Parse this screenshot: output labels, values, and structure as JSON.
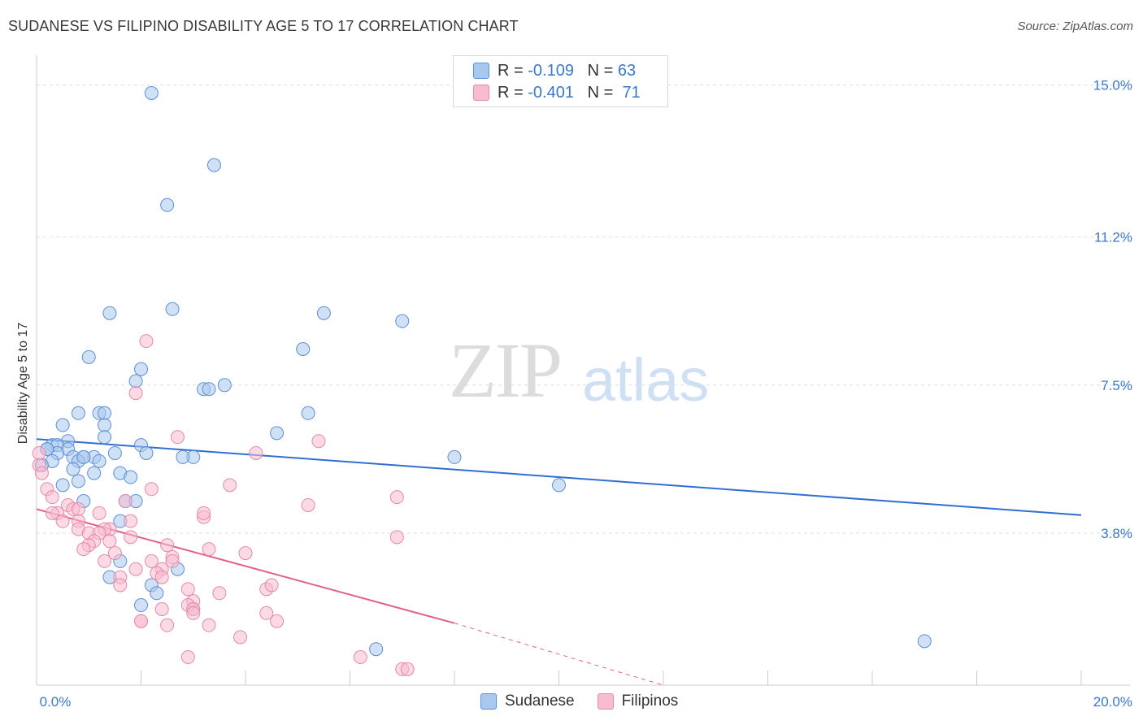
{
  "header": {
    "title": "SUDANESE VS FILIPINO DISABILITY AGE 5 TO 17 CORRELATION CHART",
    "source": "Source: ZipAtlas.com"
  },
  "watermark": {
    "zip": "ZIP",
    "atlas": "atlas"
  },
  "legend": {
    "r_label": "R =",
    "n_label": "N =",
    "rows": [
      {
        "r": "-0.109",
        "n": "63",
        "fill": "#a9c8ef",
        "stroke": "#5b8fd6"
      },
      {
        "r": "-0.401",
        "n": "71",
        "fill": "#f7bcd0",
        "stroke": "#e589a8"
      }
    ]
  },
  "bottom_legend": [
    "Sudanese",
    "Filipinos"
  ],
  "chart_data": {
    "type": "scatter",
    "title": "SUDANESE VS FILIPINO DISABILITY AGE 5 TO 17 CORRELATION CHART",
    "ylabel": "Disability Age 5 to 17",
    "xlabel": "",
    "xlim": [
      0,
      20
    ],
    "ylim": [
      0,
      15.5
    ],
    "x_tick_labels": [
      "0.0%",
      "20.0%"
    ],
    "y_ticks": [
      3.8,
      7.5,
      11.2,
      15.0
    ],
    "y_tick_labels": [
      "3.8%",
      "7.5%",
      "11.2%",
      "15.0%"
    ],
    "grid": true,
    "legend_position": "top-center",
    "colors": {
      "sudanese": "#5b8fd6",
      "filipinos": "#e589a8",
      "sudanese_line": "#2f6fd1",
      "filipinos_line": "#e0608c"
    },
    "series": [
      {
        "name": "Sudanese",
        "trend": {
          "x": [
            0,
            20
          ],
          "y": [
            6.15,
            4.25
          ]
        },
        "points": [
          [
            2.2,
            14.8
          ],
          [
            3.4,
            13.0
          ],
          [
            2.5,
            12.0
          ],
          [
            2.6,
            9.4
          ],
          [
            1.4,
            9.3
          ],
          [
            5.5,
            9.3
          ],
          [
            7.0,
            9.1
          ],
          [
            5.1,
            8.4
          ],
          [
            1.0,
            8.2
          ],
          [
            2.0,
            7.9
          ],
          [
            1.9,
            7.6
          ],
          [
            3.2,
            7.4
          ],
          [
            3.3,
            7.4
          ],
          [
            3.6,
            7.5
          ],
          [
            1.2,
            6.8
          ],
          [
            0.8,
            6.8
          ],
          [
            5.2,
            6.8
          ],
          [
            1.3,
            6.8
          ],
          [
            0.5,
            6.5
          ],
          [
            1.3,
            6.5
          ],
          [
            1.3,
            6.2
          ],
          [
            4.6,
            6.3
          ],
          [
            0.6,
            6.1
          ],
          [
            0.3,
            6.0
          ],
          [
            0.4,
            6.0
          ],
          [
            0.6,
            5.9
          ],
          [
            2.0,
            6.0
          ],
          [
            2.1,
            5.8
          ],
          [
            0.4,
            5.8
          ],
          [
            0.2,
            5.9
          ],
          [
            0.7,
            5.7
          ],
          [
            1.5,
            5.8
          ],
          [
            1.1,
            5.7
          ],
          [
            0.9,
            5.7
          ],
          [
            0.3,
            5.6
          ],
          [
            3.0,
            5.7
          ],
          [
            2.8,
            5.7
          ],
          [
            1.2,
            5.6
          ],
          [
            0.8,
            5.6
          ],
          [
            8.0,
            5.7
          ],
          [
            0.1,
            5.5
          ],
          [
            0.7,
            5.4
          ],
          [
            1.1,
            5.3
          ],
          [
            1.6,
            5.3
          ],
          [
            1.8,
            5.2
          ],
          [
            0.8,
            5.1
          ],
          [
            0.5,
            5.0
          ],
          [
            10.0,
            5.0
          ],
          [
            1.7,
            4.6
          ],
          [
            1.9,
            4.6
          ],
          [
            0.9,
            4.6
          ],
          [
            1.6,
            4.1
          ],
          [
            1.6,
            3.1
          ],
          [
            2.7,
            2.9
          ],
          [
            1.4,
            2.7
          ],
          [
            2.2,
            2.5
          ],
          [
            2.3,
            2.3
          ],
          [
            2.0,
            2.0
          ],
          [
            3.0,
            1.9
          ],
          [
            6.5,
            0.9
          ],
          [
            17.0,
            1.1
          ],
          [
            0.2,
            5.9
          ],
          [
            0.9,
            5.7
          ]
        ]
      },
      {
        "name": "Filipinos",
        "trend": {
          "x": [
            0,
            8
          ],
          "y": [
            4.4,
            1.55
          ]
        },
        "trend_dashed": {
          "x": [
            8,
            12
          ],
          "y": [
            1.55,
            0.0
          ]
        },
        "points": [
          [
            2.1,
            8.6
          ],
          [
            1.9,
            7.3
          ],
          [
            2.7,
            6.2
          ],
          [
            5.4,
            6.1
          ],
          [
            4.2,
            5.8
          ],
          [
            0.05,
            5.8
          ],
          [
            0.05,
            5.5
          ],
          [
            0.1,
            5.3
          ],
          [
            3.7,
            5.0
          ],
          [
            2.2,
            4.9
          ],
          [
            0.2,
            4.9
          ],
          [
            0.3,
            4.7
          ],
          [
            6.9,
            4.7
          ],
          [
            1.7,
            4.6
          ],
          [
            5.2,
            4.5
          ],
          [
            0.6,
            4.5
          ],
          [
            0.7,
            4.4
          ],
          [
            0.8,
            4.4
          ],
          [
            0.4,
            4.3
          ],
          [
            0.3,
            4.3
          ],
          [
            1.2,
            4.3
          ],
          [
            3.2,
            4.2
          ],
          [
            3.2,
            4.3
          ],
          [
            0.5,
            4.1
          ],
          [
            0.8,
            4.1
          ],
          [
            1.8,
            4.1
          ],
          [
            1.4,
            3.9
          ],
          [
            1.3,
            3.9
          ],
          [
            0.8,
            3.9
          ],
          [
            1.0,
            3.8
          ],
          [
            1.2,
            3.8
          ],
          [
            1.8,
            3.7
          ],
          [
            6.9,
            3.7
          ],
          [
            1.1,
            3.6
          ],
          [
            1.4,
            3.6
          ],
          [
            1.0,
            3.5
          ],
          [
            0.9,
            3.4
          ],
          [
            2.5,
            3.5
          ],
          [
            3.3,
            3.4
          ],
          [
            4.0,
            3.3
          ],
          [
            1.5,
            3.3
          ],
          [
            2.6,
            3.2
          ],
          [
            1.3,
            3.1
          ],
          [
            2.6,
            3.1
          ],
          [
            2.2,
            3.1
          ],
          [
            1.9,
            2.9
          ],
          [
            2.4,
            2.9
          ],
          [
            2.3,
            2.8
          ],
          [
            2.4,
            2.7
          ],
          [
            1.6,
            2.7
          ],
          [
            1.6,
            2.5
          ],
          [
            4.4,
            2.4
          ],
          [
            4.5,
            2.5
          ],
          [
            2.9,
            2.4
          ],
          [
            3.5,
            2.3
          ],
          [
            3.0,
            2.1
          ],
          [
            2.9,
            2.0
          ],
          [
            2.4,
            1.9
          ],
          [
            3.0,
            1.9
          ],
          [
            4.4,
            1.8
          ],
          [
            3.0,
            1.8
          ],
          [
            2.0,
            1.6
          ],
          [
            4.6,
            1.6
          ],
          [
            2.0,
            1.6
          ],
          [
            3.3,
            1.5
          ],
          [
            3.9,
            1.2
          ],
          [
            6.2,
            0.7
          ],
          [
            2.9,
            0.7
          ],
          [
            7.0,
            0.4
          ],
          [
            7.1,
            0.4
          ],
          [
            2.5,
            1.5
          ]
        ]
      }
    ]
  }
}
